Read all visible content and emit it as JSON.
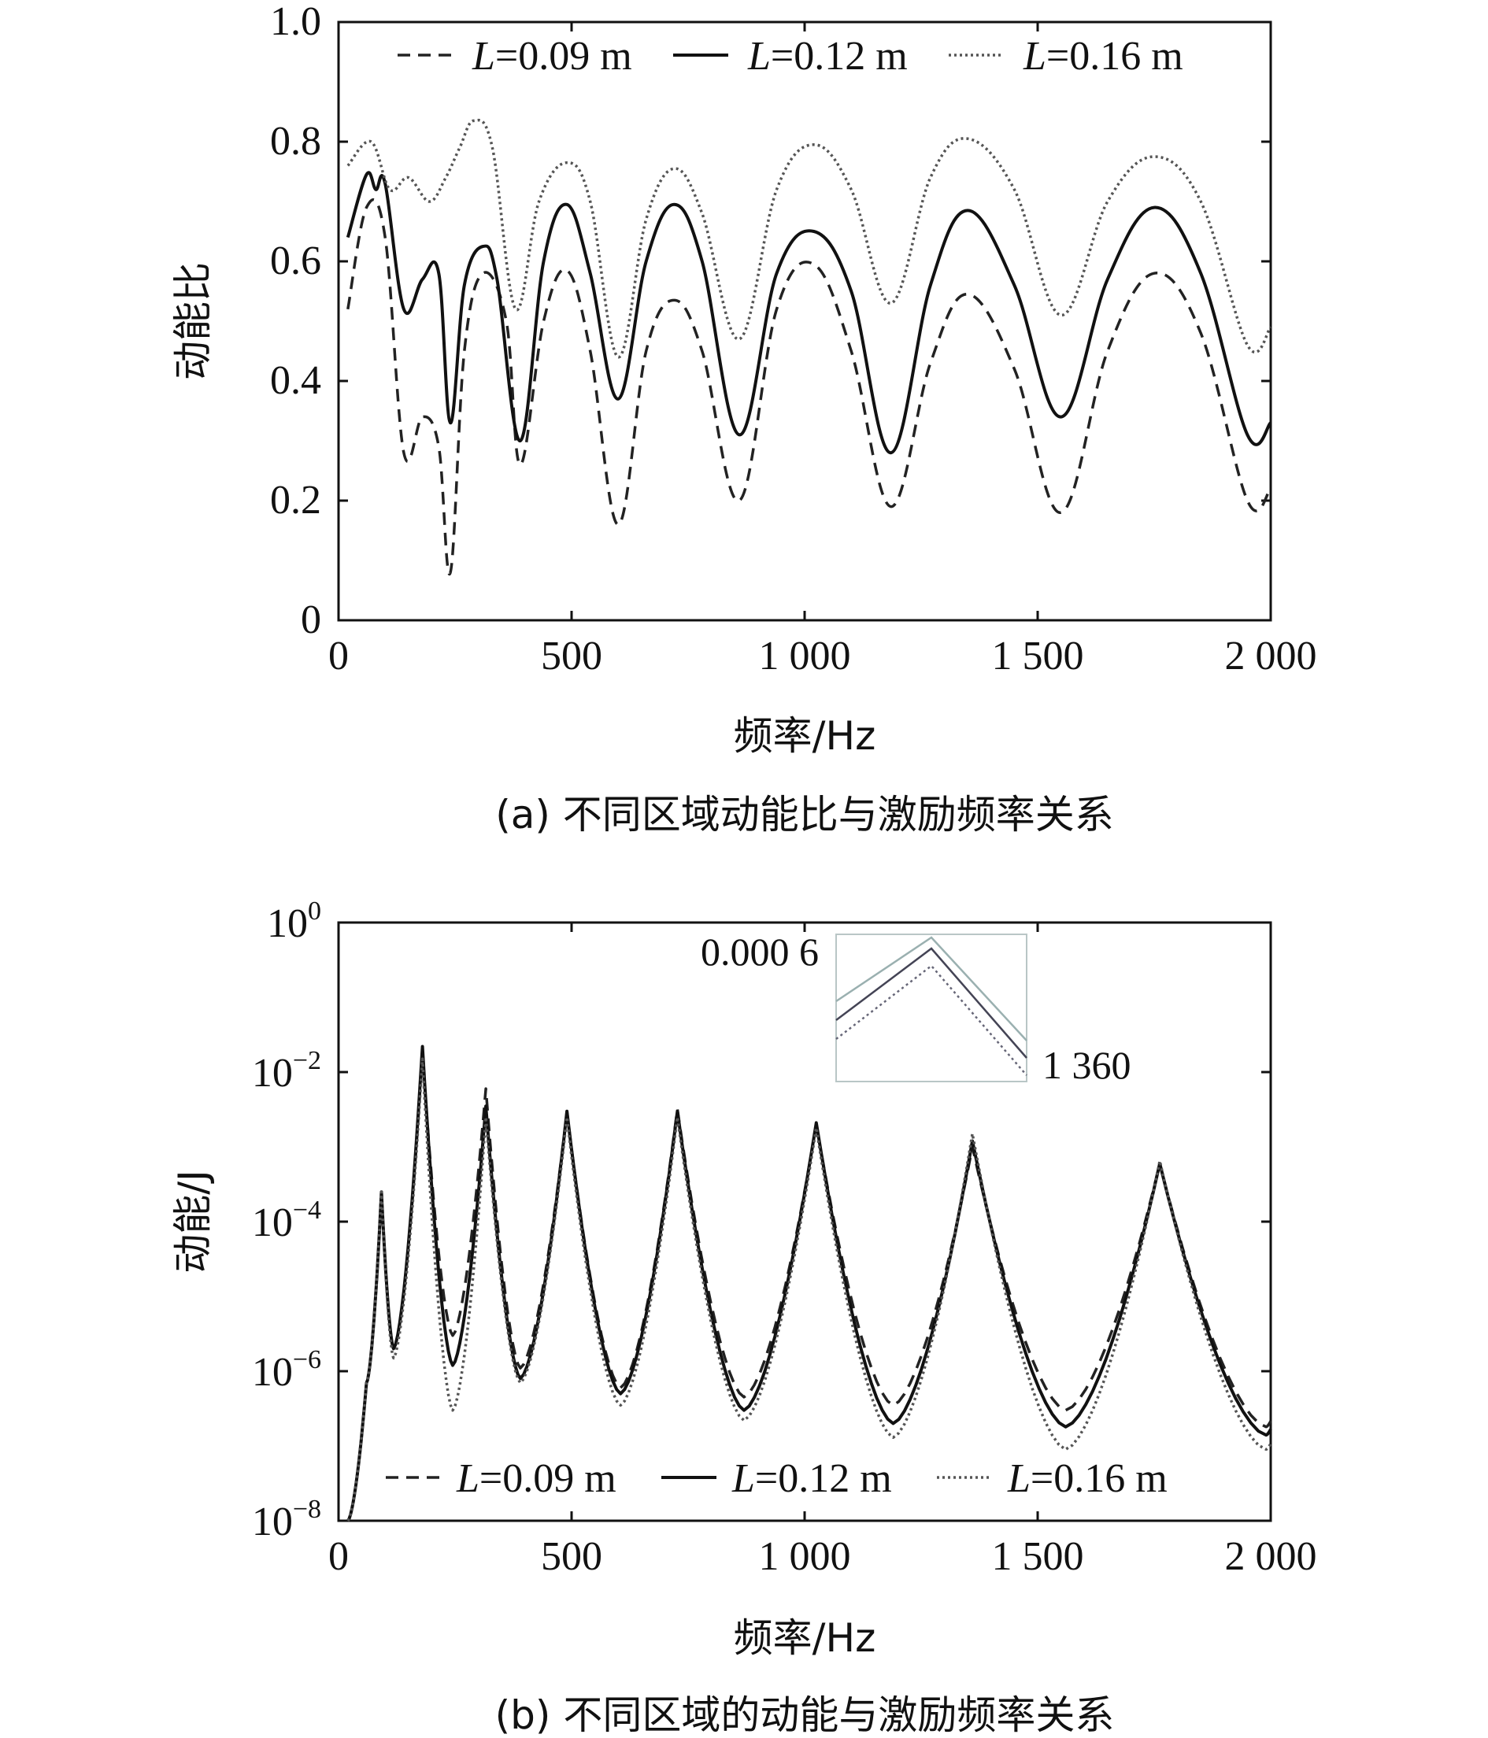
{
  "captions": {
    "a": "(a) 不同区域动能比与激励频率关系",
    "b": "(b) 不同区域的动能与激励频率关系"
  },
  "chart_data": [
    {
      "id": "a",
      "type": "line",
      "title": "",
      "xlabel": "频率/Hz",
      "ylabel": "动能比",
      "xlim": [
        0,
        2000
      ],
      "ylim": [
        0,
        1.0
      ],
      "xticks": [
        0,
        500,
        1000,
        1500,
        2000
      ],
      "xtick_labels": [
        "0",
        "500",
        "1 000",
        "1 500",
        "2 000"
      ],
      "yticks": [
        0,
        0.2,
        0.4,
        0.6,
        0.8,
        1.0
      ],
      "ytick_labels": [
        "0",
        "0.2",
        "0.4",
        "0.6",
        "0.8",
        "1.0"
      ],
      "grid": false,
      "legend": {
        "position": "top",
        "entries": [
          {
            "italic": "L",
            "text": "=0.09 m",
            "style": "dashed"
          },
          {
            "italic": "L",
            "text": "=0.12 m",
            "style": "solid"
          },
          {
            "italic": "L",
            "text": "=0.16 m",
            "style": "dotted"
          }
        ]
      },
      "series": [
        {
          "name": "L=0.09 m",
          "style": "dashed",
          "x": [
            20,
            60,
            100,
            140,
            180,
            215,
            240,
            270,
            310,
            360,
            390,
            440,
            490,
            540,
            600,
            660,
            720,
            780,
            860,
            940,
            1020,
            1100,
            1185,
            1270,
            1350,
            1450,
            1550,
            1650,
            1750,
            1850,
            1950,
            2000
          ],
          "y": [
            0.52,
            0.69,
            0.64,
            0.28,
            0.34,
            0.29,
            0.08,
            0.45,
            0.58,
            0.5,
            0.26,
            0.5,
            0.585,
            0.45,
            0.16,
            0.45,
            0.535,
            0.45,
            0.2,
            0.52,
            0.595,
            0.45,
            0.19,
            0.43,
            0.545,
            0.42,
            0.18,
            0.45,
            0.58,
            0.48,
            0.2,
            0.22
          ]
        },
        {
          "name": "L=0.12 m",
          "style": "solid",
          "x": [
            20,
            60,
            80,
            100,
            140,
            180,
            215,
            240,
            270,
            310,
            340,
            390,
            440,
            490,
            540,
            600,
            660,
            720,
            780,
            860,
            940,
            1020,
            1100,
            1185,
            1270,
            1350,
            1450,
            1550,
            1650,
            1750,
            1850,
            1950,
            2000
          ],
          "y": [
            0.64,
            0.745,
            0.72,
            0.73,
            0.52,
            0.57,
            0.58,
            0.33,
            0.56,
            0.625,
            0.57,
            0.3,
            0.6,
            0.695,
            0.58,
            0.37,
            0.6,
            0.695,
            0.6,
            0.31,
            0.58,
            0.65,
            0.55,
            0.28,
            0.56,
            0.685,
            0.56,
            0.34,
            0.57,
            0.69,
            0.58,
            0.31,
            0.33
          ]
        },
        {
          "name": "L=0.16 m",
          "style": "dotted",
          "x": [
            20,
            70,
            110,
            150,
            195,
            230,
            260,
            290,
            330,
            380,
            430,
            490,
            540,
            600,
            660,
            720,
            780,
            860,
            940,
            1020,
            1100,
            1185,
            1270,
            1350,
            1450,
            1550,
            1650,
            1750,
            1850,
            1950,
            2000
          ],
          "y": [
            0.76,
            0.8,
            0.72,
            0.74,
            0.7,
            0.74,
            0.79,
            0.835,
            0.79,
            0.52,
            0.7,
            0.765,
            0.7,
            0.44,
            0.67,
            0.755,
            0.68,
            0.47,
            0.72,
            0.795,
            0.72,
            0.53,
            0.74,
            0.805,
            0.72,
            0.51,
            0.7,
            0.775,
            0.7,
            0.46,
            0.49
          ]
        }
      ]
    },
    {
      "id": "b",
      "type": "line",
      "title": "",
      "xlabel": "频率/Hz",
      "ylabel": "动能/J",
      "xlim": [
        0,
        2000
      ],
      "ylim": [
        1e-08,
        1
      ],
      "yscale": "log",
      "xticks": [
        0,
        500,
        1000,
        1500,
        2000
      ],
      "xtick_labels": [
        "0",
        "500",
        "1 000",
        "1 500",
        "2 000"
      ],
      "yticks": [
        1e-08,
        1e-06,
        0.0001,
        0.01,
        1
      ],
      "ytick_labels": [
        {
          "base": "10",
          "exp": "−8"
        },
        {
          "base": "10",
          "exp": "−6"
        },
        {
          "base": "10",
          "exp": "−4"
        },
        {
          "base": "10",
          "exp": "−2"
        },
        {
          "base": "10",
          "exp": "0"
        }
      ],
      "grid": false,
      "legend": {
        "position": "bottom",
        "entries": [
          {
            "italic": "L",
            "text": "=0.09 m",
            "style": "dashed"
          },
          {
            "italic": "L",
            "text": "=0.12 m",
            "style": "solid"
          },
          {
            "italic": "L",
            "text": "=0.16 m",
            "style": "dotted"
          }
        ]
      },
      "inset": {
        "y_label": "0.000 6",
        "x_label": "1 360"
      },
      "series": [
        {
          "name": "L=0.09 m",
          "style": "dashed",
          "peaks": [
            [
              92,
              0.00025
            ],
            [
              180,
              0.018
            ],
            [
              316,
              0.006
            ],
            [
              490,
              0.003
            ],
            [
              727,
              0.0032
            ],
            [
              1025,
              0.002
            ],
            [
              1360,
              0.001
            ],
            [
              1762,
              0.0006
            ]
          ],
          "valleys": [
            [
              118,
              2e-06
            ],
            [
              245,
              3e-06
            ],
            [
              390,
              1.1e-06
            ],
            [
              605,
              6e-07
            ],
            [
              870,
              4.5e-07
            ],
            [
              1190,
              3.5e-07
            ],
            [
              1560,
              3e-07
            ],
            [
              1990,
              1.8e-07
            ]
          ]
        },
        {
          "name": "L=0.12 m",
          "style": "solid",
          "peaks": [
            [
              92,
              0.00025
            ],
            [
              180,
              0.022
            ],
            [
              316,
              0.0035
            ],
            [
              490,
              0.003
            ],
            [
              727,
              0.003
            ],
            [
              1025,
              0.0021
            ],
            [
              1360,
              0.0012
            ],
            [
              1762,
              0.0006
            ]
          ],
          "valleys": [
            [
              118,
              2e-06
            ],
            [
              245,
              1.2e-06
            ],
            [
              390,
              8e-07
            ],
            [
              605,
              5e-07
            ],
            [
              870,
              3e-07
            ],
            [
              1190,
              2e-07
            ],
            [
              1560,
              1.8e-07
            ],
            [
              1990,
              1.4e-07
            ]
          ]
        },
        {
          "name": "L=0.16 m",
          "style": "dotted",
          "peaks": [
            [
              92,
              0.00025
            ],
            [
              180,
              0.015
            ],
            [
              316,
              0.0025
            ],
            [
              490,
              0.0025
            ],
            [
              727,
              0.0025
            ],
            [
              1025,
              0.0018
            ],
            [
              1360,
              0.0015
            ],
            [
              1762,
              0.00065
            ]
          ],
          "valleys": [
            [
              118,
              1.5e-06
            ],
            [
              245,
              3e-07
            ],
            [
              390,
              7e-07
            ],
            [
              605,
              3.5e-07
            ],
            [
              870,
              2.2e-07
            ],
            [
              1190,
              1.3e-07
            ],
            [
              1560,
              9e-08
            ],
            [
              1990,
              9e-08
            ]
          ]
        }
      ]
    }
  ]
}
